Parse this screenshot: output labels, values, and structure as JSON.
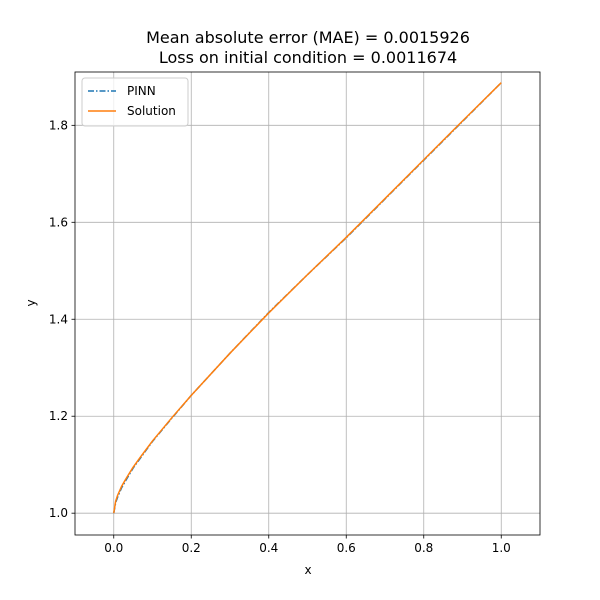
{
  "chart_data": {
    "type": "line",
    "title_lines": [
      "Mean absolute error (MAE) = 0.0015926",
      "Loss on initial condition = 0.0011674"
    ],
    "xlabel": "x",
    "ylabel": "y",
    "xlim": [
      -0.1,
      1.1
    ],
    "ylim": [
      0.955,
      1.91
    ],
    "xticks": [
      0.0,
      0.2,
      0.4,
      0.6,
      0.8,
      1.0
    ],
    "xtick_labels": [
      "0.0",
      "0.2",
      "0.4",
      "0.6",
      "0.8",
      "1.0"
    ],
    "yticks": [
      1.0,
      1.2,
      1.4,
      1.6,
      1.8
    ],
    "ytick_labels": [
      "1.0",
      "1.2",
      "1.4",
      "1.6",
      "1.8"
    ],
    "grid": true,
    "legend_position": "upper-left",
    "series": [
      {
        "name": "PINN",
        "color": "#1f77b4",
        "style": "dashdot",
        "x": [
          0.0,
          0.005,
          0.01,
          0.02,
          0.03,
          0.05,
          0.07,
          0.1,
          0.15,
          0.2,
          0.3,
          0.4,
          0.5,
          0.6,
          0.7,
          0.8,
          0.9,
          1.0
        ],
        "y": [
          1.0,
          1.022,
          1.033,
          1.052,
          1.066,
          1.093,
          1.115,
          1.148,
          1.196,
          1.243,
          1.33,
          1.414,
          1.492,
          1.568,
          1.648,
          1.728,
          1.808,
          1.888
        ]
      },
      {
        "name": "Solution",
        "color": "#ff7f0e",
        "style": "solid",
        "x": [
          0.0,
          0.005,
          0.01,
          0.02,
          0.03,
          0.05,
          0.07,
          0.1,
          0.15,
          0.2,
          0.3,
          0.4,
          0.5,
          0.6,
          0.7,
          0.8,
          0.9,
          1.0
        ],
        "y": [
          1.0,
          1.025,
          1.037,
          1.055,
          1.069,
          1.095,
          1.117,
          1.149,
          1.197,
          1.243,
          1.33,
          1.413,
          1.492,
          1.569,
          1.649,
          1.729,
          1.809,
          1.888
        ]
      }
    ]
  }
}
